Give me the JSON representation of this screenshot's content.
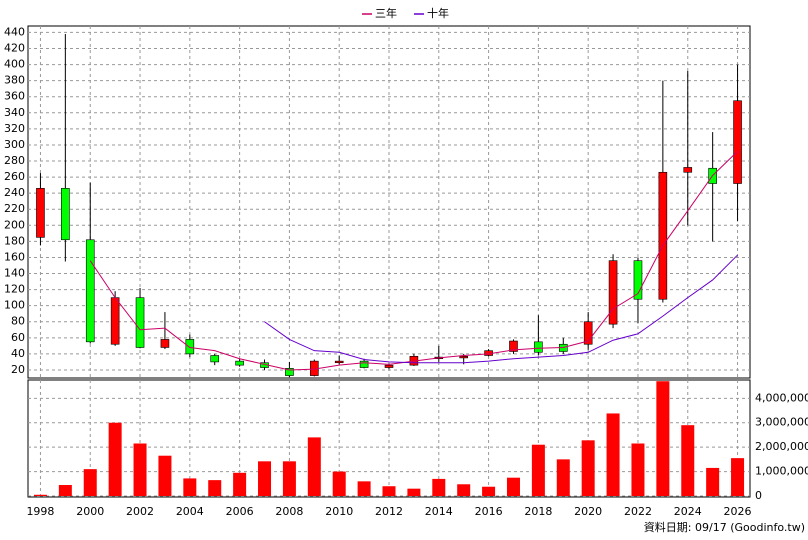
{
  "chart_data": [
    {
      "type": "candlestick",
      "x": [
        1998,
        1999,
        2000,
        2001,
        2002,
        2003,
        2004,
        2005,
        2006,
        2007,
        2008,
        2009,
        2010,
        2011,
        2012,
        2013,
        2014,
        2015,
        2016,
        2017,
        2018,
        2019,
        2020,
        2021,
        2022,
        2023,
        2024,
        2025,
        2026
      ],
      "open": [
        185,
        246,
        182,
        52,
        110,
        48,
        58,
        38,
        31,
        29,
        22,
        13,
        29,
        31,
        23,
        26,
        34,
        35,
        38,
        43,
        55,
        52,
        52,
        77,
        156,
        108,
        266,
        271,
        252
      ],
      "high": [
        265,
        438,
        253,
        118,
        122,
        92,
        64,
        40,
        34,
        33,
        30,
        33,
        38,
        34,
        28,
        40,
        50,
        40,
        46,
        58,
        88,
        60,
        92,
        164,
        160,
        380,
        392,
        316,
        400
      ],
      "low": [
        175,
        155,
        53,
        50,
        47,
        46,
        36,
        26,
        24,
        20,
        11,
        12,
        27,
        22,
        21,
        25,
        30,
        27,
        37,
        40,
        38,
        40,
        45,
        72,
        78,
        104,
        200,
        180,
        205
      ],
      "close": [
        246,
        182,
        55,
        110,
        48,
        58,
        40,
        30,
        26,
        23,
        13,
        31,
        31,
        23,
        26,
        37,
        36,
        37,
        44,
        56,
        42,
        43,
        80,
        156,
        108,
        266,
        272,
        252,
        355
      ],
      "up_color": "#ff0000",
      "down_color": "#00ff00",
      "series": [
        {
          "name": "三年",
          "color": "#cc0066",
          "values": [
            null,
            null,
            156,
            110,
            70,
            72,
            48,
            44,
            34,
            27,
            20,
            21,
            26,
            29,
            27,
            31,
            35,
            38,
            40,
            45,
            47,
            48,
            56,
            96,
            115,
            175,
            218,
            262,
            292
          ]
        },
        {
          "name": "十年",
          "color": "#6600cc",
          "values": [
            null,
            null,
            null,
            null,
            null,
            null,
            null,
            null,
            null,
            80,
            58,
            44,
            42,
            33,
            30,
            29,
            29,
            29,
            31,
            34,
            36,
            38,
            42,
            57,
            65,
            87,
            110,
            132,
            163
          ]
        }
      ],
      "xlim": [
        1997.5,
        2026.5
      ],
      "ylim": [
        10,
        448
      ],
      "yticks": [
        20,
        40,
        60,
        80,
        100,
        120,
        140,
        160,
        180,
        200,
        220,
        240,
        260,
        280,
        300,
        320,
        340,
        360,
        380,
        400,
        420,
        440
      ],
      "grid": true
    },
    {
      "type": "bar",
      "x": [
        1998,
        1999,
        2000,
        2001,
        2002,
        2003,
        2004,
        2005,
        2006,
        2007,
        2008,
        2009,
        2010,
        2011,
        2012,
        2013,
        2014,
        2015,
        2016,
        2017,
        2018,
        2019,
        2020,
        2021,
        2022,
        2023,
        2024,
        2025,
        2026
      ],
      "values": [
        50000,
        450000,
        1100000,
        3000000,
        2150000,
        1650000,
        720000,
        650000,
        950000,
        1420000,
        1420000,
        2400000,
        1000000,
        600000,
        400000,
        300000,
        700000,
        480000,
        380000,
        750000,
        2100000,
        1500000,
        2280000,
        3380000,
        2150000,
        4700000,
        2900000,
        1150000,
        1550000
      ],
      "color": "#ff0000",
      "xlim": [
        1997.5,
        2026.5
      ],
      "xticks": [
        1998,
        2000,
        2002,
        2004,
        2006,
        2008,
        2010,
        2012,
        2014,
        2016,
        2018,
        2020,
        2022,
        2024,
        2026
      ],
      "ylim": [
        0,
        4750000
      ],
      "yticks": [
        0,
        {
          "value": 1000000,
          "label": "1,000,000"
        },
        {
          "value": 2000000,
          "label": "2,000,000"
        },
        {
          "value": 3000000,
          "label": "3,000,000"
        },
        {
          "value": 4000000,
          "label": "4,000,000"
        }
      ],
      "grid": true,
      "source": "資料日期: 09/17 (Goodinfo.tw)"
    }
  ]
}
